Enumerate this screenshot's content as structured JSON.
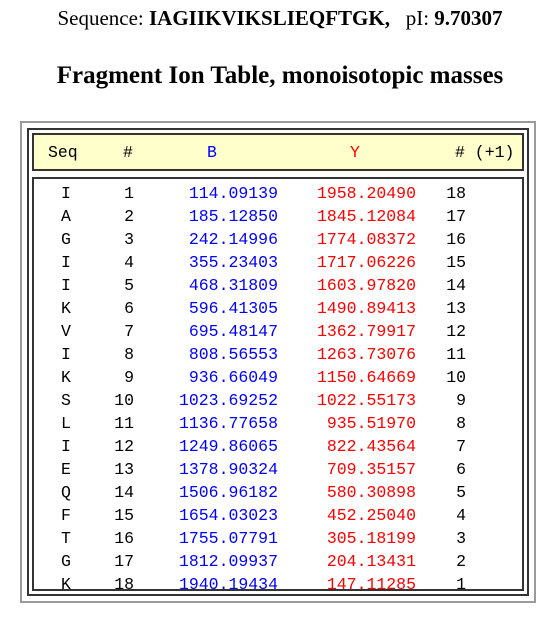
{
  "header": {
    "sequence_label": "Sequence:",
    "sequence": "IAGIIKVIKSLIEQFTGK,",
    "pi_label": "pI:",
    "pi_value": "9.70307"
  },
  "title": "Fragment Ion Table, monoisotopic masses",
  "table": {
    "columns": {
      "seq": "Seq",
      "num": "#",
      "b": "B",
      "y": "Y",
      "num_plus1": "# (+1)"
    },
    "colors": {
      "b": "#0000ff",
      "y": "#ff0000",
      "header_bg": "#ffffcc"
    },
    "rows": [
      {
        "seq": "I",
        "num": "1",
        "b": "114.09139",
        "y": "1958.20490",
        "num_plus1": "18"
      },
      {
        "seq": "A",
        "num": "2",
        "b": "185.12850",
        "y": "1845.12084",
        "num_plus1": "17"
      },
      {
        "seq": "G",
        "num": "3",
        "b": "242.14996",
        "y": "1774.08372",
        "num_plus1": "16"
      },
      {
        "seq": "I",
        "num": "4",
        "b": "355.23403",
        "y": "1717.06226",
        "num_plus1": "15"
      },
      {
        "seq": "I",
        "num": "5",
        "b": "468.31809",
        "y": "1603.97820",
        "num_plus1": "14"
      },
      {
        "seq": "K",
        "num": "6",
        "b": "596.41305",
        "y": "1490.89413",
        "num_plus1": "13"
      },
      {
        "seq": "V",
        "num": "7",
        "b": "695.48147",
        "y": "1362.79917",
        "num_plus1": "12"
      },
      {
        "seq": "I",
        "num": "8",
        "b": "808.56553",
        "y": "1263.73076",
        "num_plus1": "11"
      },
      {
        "seq": "K",
        "num": "9",
        "b": "936.66049",
        "y": "1150.64669",
        "num_plus1": "10"
      },
      {
        "seq": "S",
        "num": "10",
        "b": "1023.69252",
        "y": "1022.55173",
        "num_plus1": "9"
      },
      {
        "seq": "L",
        "num": "11",
        "b": "1136.77658",
        "y": "935.51970",
        "num_plus1": "8"
      },
      {
        "seq": "I",
        "num": "12",
        "b": "1249.86065",
        "y": "822.43564",
        "num_plus1": "7"
      },
      {
        "seq": "E",
        "num": "13",
        "b": "1378.90324",
        "y": "709.35157",
        "num_plus1": "6"
      },
      {
        "seq": "Q",
        "num": "14",
        "b": "1506.96182",
        "y": "580.30898",
        "num_plus1": "5"
      },
      {
        "seq": "F",
        "num": "15",
        "b": "1654.03023",
        "y": "452.25040",
        "num_plus1": "4"
      },
      {
        "seq": "T",
        "num": "16",
        "b": "1755.07791",
        "y": "305.18199",
        "num_plus1": "3"
      },
      {
        "seq": "G",
        "num": "17",
        "b": "1812.09937",
        "y": "204.13431",
        "num_plus1": "2"
      },
      {
        "seq": "K",
        "num": "18",
        "b": "1940.19434",
        "y": "147.11285",
        "num_plus1": "1"
      }
    ]
  }
}
